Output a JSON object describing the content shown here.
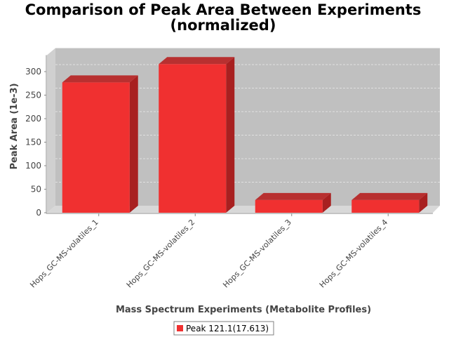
{
  "chart_data": {
    "type": "bar",
    "title_line1": "Comparison of Peak Area Between Experiments",
    "title_line2": "(normalized)",
    "xlabel": "Mass Spectrum Experiments (Metabolite Profiles)",
    "ylabel": "Peak Area (1e-3)",
    "categories": [
      "Hops_GC-MS-volatiles_1",
      "Hops_GC-MS-volatiles_2",
      "Hops_GC-MS-volatiles_3",
      "Hops_GC-MS-volatiles_4"
    ],
    "series": [
      {
        "name": "Peak 121.1(17.613)",
        "values": [
          277,
          316,
          27,
          27
        ],
        "color": "#f03030"
      }
    ],
    "yticks": [
      "0",
      "50",
      "100",
      "150",
      "200",
      "250",
      "300"
    ],
    "ylim": [
      0,
      335
    ],
    "grid": true,
    "legend": "bottom",
    "colors": {
      "plot_background": "#c0c0c0",
      "floor": "#d8d8d8",
      "bar_top": "#b83030",
      "bar_side": "#a82020"
    }
  }
}
